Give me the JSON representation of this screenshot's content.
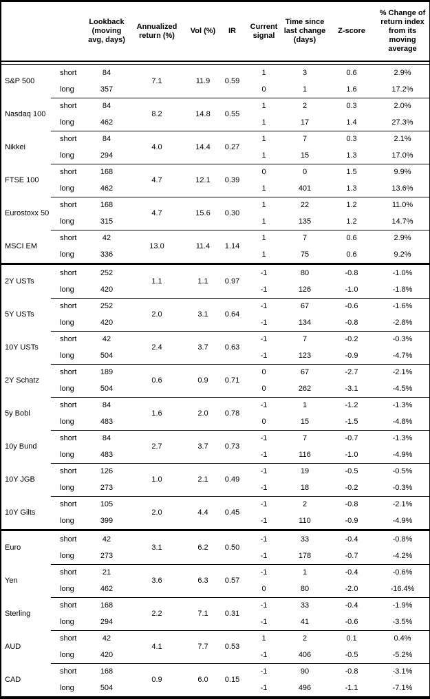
{
  "header": {
    "lookback": "Lookback\n(moving\navg, days)",
    "annualized": "Annualized\nreturn (%)",
    "vol": "Vol (%)",
    "ir": "IR",
    "signal": "Current\nsignal",
    "time": "Time since\nlast change\n(days)",
    "zscore": "Z-score",
    "pct_change": "% Change of\nreturn index\nfrom its\nmoving\naverage"
  },
  "labels": {
    "short": "short",
    "long": "long"
  },
  "sections": [
    {
      "assets": [
        {
          "name": "S&P 500",
          "ann": "7.1",
          "vol": "11.9",
          "ir": "0.59",
          "short": {
            "lookback": "84",
            "signal": "1",
            "time": "3",
            "z": "0.6",
            "pct": "2.9%"
          },
          "long": {
            "lookback": "357",
            "signal": "0",
            "time": "1",
            "z": "1.6",
            "pct": "17.2%"
          }
        },
        {
          "name": "Nasdaq 100",
          "ann": "8.2",
          "vol": "14.8",
          "ir": "0.55",
          "short": {
            "lookback": "84",
            "signal": "1",
            "time": "2",
            "z": "0.3",
            "pct": "2.0%"
          },
          "long": {
            "lookback": "462",
            "signal": "1",
            "time": "17",
            "z": "1.4",
            "pct": "27.3%"
          }
        },
        {
          "name": "Nikkei",
          "ann": "4.0",
          "vol": "14.4",
          "ir": "0.27",
          "short": {
            "lookback": "84",
            "signal": "1",
            "time": "7",
            "z": "0.3",
            "pct": "2.1%"
          },
          "long": {
            "lookback": "294",
            "signal": "1",
            "time": "15",
            "z": "1.3",
            "pct": "17.0%"
          }
        },
        {
          "name": "FTSE 100",
          "ann": "4.7",
          "vol": "12.1",
          "ir": "0.39",
          "short": {
            "lookback": "168",
            "signal": "0",
            "time": "0",
            "z": "1.5",
            "pct": "9.9%"
          },
          "long": {
            "lookback": "462",
            "signal": "1",
            "time": "401",
            "z": "1.3",
            "pct": "13.6%"
          }
        },
        {
          "name": "Eurostoxx 50",
          "ann": "4.7",
          "vol": "15.6",
          "ir": "0.30",
          "short": {
            "lookback": "168",
            "signal": "1",
            "time": "22",
            "z": "1.2",
            "pct": "11.0%"
          },
          "long": {
            "lookback": "315",
            "signal": "1",
            "time": "135",
            "z": "1.2",
            "pct": "14.7%"
          }
        },
        {
          "name": "MSCI EM",
          "ann": "13.0",
          "vol": "11.4",
          "ir": "1.14",
          "short": {
            "lookback": "42",
            "signal": "1",
            "time": "7",
            "z": "0.6",
            "pct": "2.9%"
          },
          "long": {
            "lookback": "336",
            "signal": "1",
            "time": "75",
            "z": "0.6",
            "pct": "9.2%"
          }
        }
      ]
    },
    {
      "assets": [
        {
          "name": "2Y USTs",
          "ann": "1.1",
          "vol": "1.1",
          "ir": "0.97",
          "short": {
            "lookback": "252",
            "signal": "-1",
            "time": "80",
            "z": "-0.8",
            "pct": "-1.0%"
          },
          "long": {
            "lookback": "420",
            "signal": "-1",
            "time": "126",
            "z": "-1.0",
            "pct": "-1.8%"
          }
        },
        {
          "name": "5Y USTs",
          "ann": "2.0",
          "vol": "3.1",
          "ir": "0.64",
          "short": {
            "lookback": "252",
            "signal": "-1",
            "time": "67",
            "z": "-0.6",
            "pct": "-1.6%"
          },
          "long": {
            "lookback": "420",
            "signal": "-1",
            "time": "134",
            "z": "-0.8",
            "pct": "-2.8%"
          }
        },
        {
          "name": "10Y USTs",
          "ann": "2.4",
          "vol": "3.7",
          "ir": "0.63",
          "short": {
            "lookback": "42",
            "signal": "-1",
            "time": "7",
            "z": "-0.2",
            "pct": "-0.3%"
          },
          "long": {
            "lookback": "504",
            "signal": "-1",
            "time": "123",
            "z": "-0.9",
            "pct": "-4.7%"
          }
        },
        {
          "name": "2Y Schatz",
          "ann": "0.6",
          "vol": "0.9",
          "ir": "0.71",
          "short": {
            "lookback": "189",
            "signal": "0",
            "time": "67",
            "z": "-2.7",
            "pct": "-2.1%"
          },
          "long": {
            "lookback": "504",
            "signal": "0",
            "time": "262",
            "z": "-3.1",
            "pct": "-4.5%"
          }
        },
        {
          "name": "5y Bobl",
          "ann": "1.6",
          "vol": "2.0",
          "ir": "0.78",
          "short": {
            "lookback": "84",
            "signal": "-1",
            "time": "1",
            "z": "-1.2",
            "pct": "-1.3%"
          },
          "long": {
            "lookback": "483",
            "signal": "0",
            "time": "15",
            "z": "-1.5",
            "pct": "-4.8%"
          }
        },
        {
          "name": "10y Bund",
          "ann": "2.7",
          "vol": "3.7",
          "ir": "0.73",
          "short": {
            "lookback": "84",
            "signal": "-1",
            "time": "7",
            "z": "-0.7",
            "pct": "-1.3%"
          },
          "long": {
            "lookback": "483",
            "signal": "-1",
            "time": "116",
            "z": "-1.0",
            "pct": "-4.9%"
          }
        },
        {
          "name": "10Y JGB",
          "ann": "1.0",
          "vol": "2.1",
          "ir": "0.49",
          "short": {
            "lookback": "126",
            "signal": "-1",
            "time": "19",
            "z": "-0.5",
            "pct": "-0.5%"
          },
          "long": {
            "lookback": "273",
            "signal": "-1",
            "time": "18",
            "z": "-0.2",
            "pct": "-0.3%"
          }
        },
        {
          "name": "10Y Gilts",
          "ann": "2.0",
          "vol": "4.4",
          "ir": "0.45",
          "short": {
            "lookback": "105",
            "signal": "-1",
            "time": "2",
            "z": "-0.8",
            "pct": "-2.1%"
          },
          "long": {
            "lookback": "399",
            "signal": "-1",
            "time": "110",
            "z": "-0.9",
            "pct": "-4.9%"
          }
        }
      ]
    },
    {
      "assets": [
        {
          "name": "Euro",
          "ann": "3.1",
          "vol": "6.2",
          "ir": "0.50",
          "short": {
            "lookback": "42",
            "signal": "-1",
            "time": "33",
            "z": "-0.4",
            "pct": "-0.8%"
          },
          "long": {
            "lookback": "273",
            "signal": "-1",
            "time": "178",
            "z": "-0.7",
            "pct": "-4.2%"
          }
        },
        {
          "name": "Yen",
          "ann": "3.6",
          "vol": "6.3",
          "ir": "0.57",
          "short": {
            "lookback": "21",
            "signal": "-1",
            "time": "1",
            "z": "-0.4",
            "pct": "-0.6%"
          },
          "long": {
            "lookback": "462",
            "signal": "0",
            "time": "80",
            "z": "-2.0",
            "pct": "-16.4%"
          }
        },
        {
          "name": "Sterling",
          "ann": "2.2",
          "vol": "7.1",
          "ir": "0.31",
          "short": {
            "lookback": "168",
            "signal": "-1",
            "time": "33",
            "z": "-0.4",
            "pct": "-1.9%"
          },
          "long": {
            "lookback": "294",
            "signal": "-1",
            "time": "41",
            "z": "-0.6",
            "pct": "-3.5%"
          }
        },
        {
          "name": "AUD",
          "ann": "4.1",
          "vol": "7.7",
          "ir": "0.53",
          "short": {
            "lookback": "42",
            "signal": "1",
            "time": "2",
            "z": "0.1",
            "pct": "0.4%"
          },
          "long": {
            "lookback": "420",
            "signal": "-1",
            "time": "406",
            "z": "-0.5",
            "pct": "-5.2%"
          }
        },
        {
          "name": "CAD",
          "ann": "0.9",
          "vol": "6.0",
          "ir": "0.15",
          "short": {
            "lookback": "168",
            "signal": "-1",
            "time": "90",
            "z": "-0.8",
            "pct": "-3.1%"
          },
          "long": {
            "lookback": "504",
            "signal": "-1",
            "time": "496",
            "z": "-1.1",
            "pct": "-7.1%"
          }
        }
      ]
    }
  ]
}
